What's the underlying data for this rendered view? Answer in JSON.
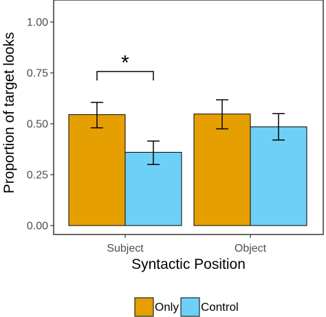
{
  "chart_data": {
    "type": "bar",
    "categories": [
      "Subject",
      "Object"
    ],
    "series": [
      {
        "name": "Only",
        "color": "#E69F00",
        "values": [
          0.545,
          0.548
        ],
        "error_low": [
          0.48,
          0.475
        ],
        "error_high": [
          0.605,
          0.618
        ]
      },
      {
        "name": "Control",
        "color": "#6ED0F6",
        "values": [
          0.36,
          0.485
        ],
        "error_low": [
          0.3,
          0.42
        ],
        "error_high": [
          0.415,
          0.55
        ]
      }
    ],
    "xlabel": "Syntactic Position",
    "ylabel": "Proportion of target looks",
    "ylim": [
      0,
      1.0
    ],
    "yticks": [
      "0.00",
      "0.25",
      "0.50",
      "0.75",
      "1.00"
    ],
    "grid": false,
    "legend": {
      "position": "bottom",
      "entries": [
        "Only",
        "Control"
      ]
    },
    "annotations": [
      {
        "text": "*",
        "category": "Subject",
        "type": "significance-bracket"
      }
    ]
  }
}
